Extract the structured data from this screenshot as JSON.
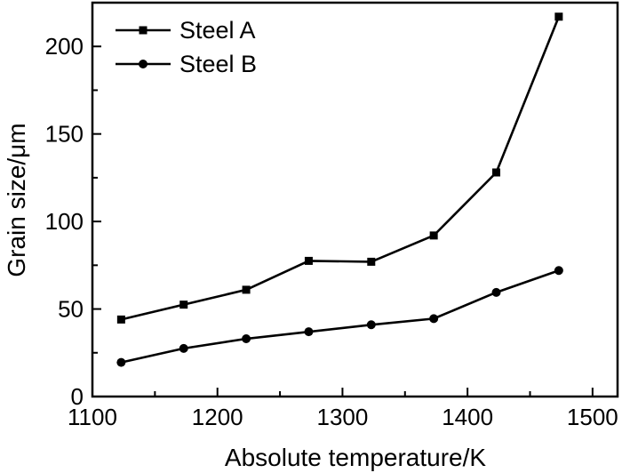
{
  "chart_data": {
    "type": "line",
    "title": "",
    "xlabel": "Absolute temperature/K",
    "ylabel": "Grain size/μm",
    "xlim": [
      1100,
      1520
    ],
    "ylim": [
      0,
      225
    ],
    "xticks": [
      1100,
      1200,
      1300,
      1400,
      1500
    ],
    "yticks": [
      0,
      50,
      100,
      150,
      200
    ],
    "x_minor_step": 50,
    "y_minor_step": 25,
    "grid": false,
    "legend": "top-left",
    "series": [
      {
        "name": "Steel A",
        "marker": "square",
        "x": [
          1123,
          1173,
          1223,
          1273,
          1323,
          1373,
          1423,
          1473
        ],
        "y": [
          44,
          52.5,
          61,
          77.5,
          77,
          92,
          128,
          217
        ]
      },
      {
        "name": "Steel B",
        "marker": "circle",
        "x": [
          1123,
          1173,
          1223,
          1273,
          1323,
          1373,
          1423,
          1473
        ],
        "y": [
          19.5,
          27.5,
          33,
          37,
          41,
          44.5,
          59.5,
          72
        ]
      }
    ]
  }
}
